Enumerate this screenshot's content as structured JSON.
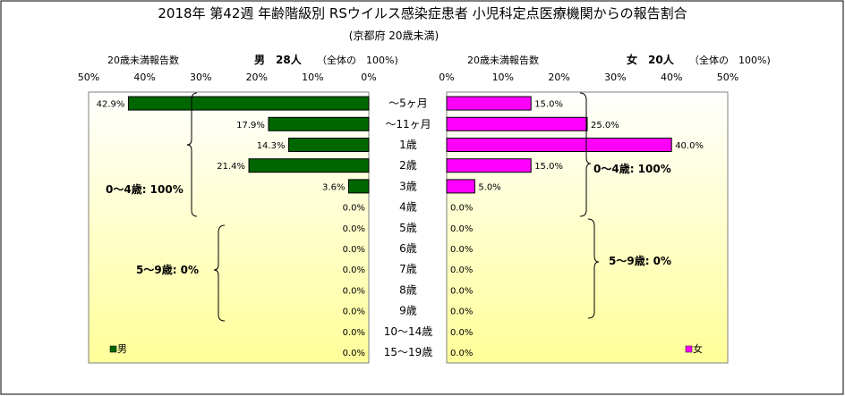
{
  "title": "2018年 第42週 年齢階級別 RSウイルス感染症患者 小児科定点医療機関からの報告割合",
  "subtitle": "(京都府 20歳未満)",
  "colors": {
    "male": "#006600",
    "female": "#ff00ff",
    "plot_top": "#ffffff",
    "plot_bottom": "#ffff99"
  },
  "chart_data": [
    {
      "type": "bar",
      "orientation": "horizontal",
      "direction": "right-to-left",
      "header_left": "20歳未満報告数",
      "header_main": "男　28人",
      "header_note": "（全体の　100%)",
      "xlim": [
        0,
        50
      ],
      "x_ticks": [
        "50%",
        "40%",
        "30%",
        "20%",
        "10%",
        "0%"
      ],
      "series": [
        {
          "name": "男",
          "values": [
            42.9,
            17.9,
            14.3,
            21.4,
            3.6,
            0,
            0,
            0,
            0,
            0,
            0,
            0,
            0
          ]
        }
      ],
      "data_labels": [
        "42.9%",
        "17.9%",
        "14.3%",
        "21.4%",
        "3.6%",
        "0.0%",
        "0.0%",
        "0.0%",
        "0.0%",
        "0.0%",
        "0.0%",
        "0.0%",
        "0.0%"
      ],
      "annotations": [
        "0～4歳: 100%",
        "5～9歳: 0%"
      ],
      "legend": "bottom-left"
    },
    {
      "type": "bar",
      "orientation": "horizontal",
      "direction": "left-to-right",
      "header_left": "20歳未満報告数",
      "header_main": "女　20人",
      "header_note": "（全体の　100%)",
      "xlim": [
        0,
        50
      ],
      "x_ticks": [
        "0%",
        "10%",
        "20%",
        "30%",
        "40%",
        "50%"
      ],
      "series": [
        {
          "name": "女",
          "values": [
            15.0,
            25.0,
            40.0,
            15.0,
            5.0,
            0,
            0,
            0,
            0,
            0,
            0,
            0,
            0
          ]
        }
      ],
      "data_labels": [
        "15.0%",
        "25.0%",
        "40.0%",
        "15.0%",
        "5.0%",
        "0.0%",
        "0.0%",
        "0.0%",
        "0.0%",
        "0.0%",
        "0.0%",
        "0.0%",
        "0.0%"
      ],
      "annotations": [
        "0～4歳: 100%",
        "5～9歳: 0%"
      ],
      "legend": "bottom-right"
    }
  ],
  "categories": [
    "～5ヶ月",
    "～11ヶ月",
    "1歳",
    "2歳",
    "3歳",
    "4歳",
    "5歳",
    "6歳",
    "7歳",
    "8歳",
    "9歳",
    "10～14歳",
    "15～19歳"
  ]
}
